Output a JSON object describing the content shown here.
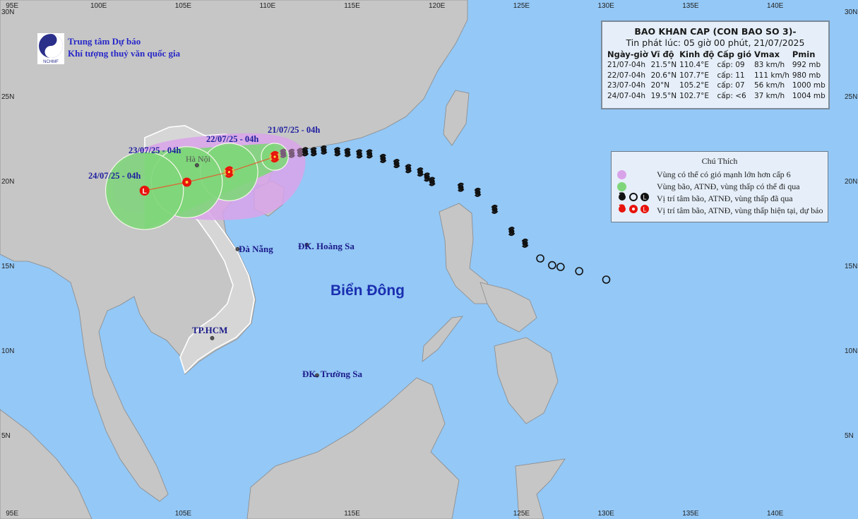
{
  "colors": {
    "ocean": "#94c8f6",
    "land": "#c6c6c6",
    "vietnam": "#d4d4d4",
    "wind_zone": "#d9a3ea",
    "storm_zone": "#7fd67a",
    "forecast": "#e8140c",
    "past": "#111111"
  },
  "header": {
    "org_line1": "Trung tâm Dự báo",
    "org_line2": "Khí tượng thuỷ văn quốc gia",
    "logo_text": "NCHMF"
  },
  "info": {
    "title": "BAO KHAN CAP (CON BAO SO 3)-",
    "issued": "Tin phát lúc: 05 giờ 00 phút, 21/07/2025",
    "columns": [
      "Ngày-giờ",
      "Vĩ độ",
      "Kinh độ",
      "Cấp gió",
      "Vmax",
      "Pmin"
    ],
    "rows": [
      [
        "21/07-04h",
        "21.5°N",
        "110.4°E",
        "cấp: 09",
        "83 km/h",
        "992 mb"
      ],
      [
        "22/07-04h",
        "20.6°N",
        "107.7°E",
        "cấp: 11",
        "111 km/h",
        "980 mb"
      ],
      [
        "23/07-04h",
        "20°N",
        "105.2°E",
        "cấp: 07",
        "56 km/h",
        "1000 mb"
      ],
      [
        "24/07-04h",
        "19.5°N",
        "102.7°E",
        "cấp: <6",
        "37 km/h",
        "1004 mb"
      ]
    ]
  },
  "legend": {
    "title": "Chú Thích",
    "items": [
      {
        "label": "Vùng có thể có gió mạnh lớn hơn cấp 6",
        "icon": "purple-circle"
      },
      {
        "label": "Vùng bão, ATNĐ, vùng thấp có thể đi qua",
        "icon": "green-circle"
      },
      {
        "label": "Vị trí tâm bão, ATNĐ, vùng thấp đã qua",
        "icon": "black-storm-symbols"
      },
      {
        "label": "Vị trí tâm bão, ATNĐ, vùng thấp hiện tại, dự báo",
        "icon": "red-storm-symbols"
      }
    ]
  },
  "forecast_labels": [
    "21/07/25 - 04h",
    "22/07/25 - 04h",
    "23/07/25 - 04h",
    "24/07/25 - 04h"
  ],
  "forecast_points": [
    {
      "lon": 110.4,
      "lat": 21.5,
      "type": "storm",
      "radius_deg": 0.8
    },
    {
      "lon": 107.7,
      "lat": 20.6,
      "type": "storm",
      "radius_deg": 1.7
    },
    {
      "lon": 105.2,
      "lat": 20.0,
      "type": "depression",
      "radius_deg": 2.1
    },
    {
      "lon": 102.7,
      "lat": 19.5,
      "type": "low",
      "radius_deg": 2.3
    }
  ],
  "past_track": [
    {
      "lon": 110.9,
      "lat": 21.7,
      "type": "storm-recent"
    },
    {
      "lon": 111.4,
      "lat": 21.7,
      "type": "storm-recent"
    },
    {
      "lon": 111.9,
      "lat": 21.75,
      "type": "storm-recent"
    },
    {
      "lon": 112.2,
      "lat": 21.8,
      "type": "storm"
    },
    {
      "lon": 112.7,
      "lat": 21.8,
      "type": "storm"
    },
    {
      "lon": 113.3,
      "lat": 21.9,
      "type": "storm"
    },
    {
      "lon": 114.1,
      "lat": 21.8,
      "type": "storm"
    },
    {
      "lon": 114.7,
      "lat": 21.75,
      "type": "storm"
    },
    {
      "lon": 115.4,
      "lat": 21.67,
      "type": "storm"
    },
    {
      "lon": 116.0,
      "lat": 21.67,
      "type": "storm"
    },
    {
      "lon": 116.8,
      "lat": 21.4,
      "type": "storm"
    },
    {
      "lon": 117.6,
      "lat": 21.1,
      "type": "storm"
    },
    {
      "lon": 118.3,
      "lat": 20.8,
      "type": "storm"
    },
    {
      "lon": 119.0,
      "lat": 20.6,
      "type": "storm"
    },
    {
      "lon": 119.4,
      "lat": 20.3,
      "type": "storm"
    },
    {
      "lon": 119.7,
      "lat": 20.04,
      "type": "storm"
    },
    {
      "lon": 121.4,
      "lat": 19.7,
      "type": "storm"
    },
    {
      "lon": 122.4,
      "lat": 19.4,
      "type": "storm"
    },
    {
      "lon": 123.4,
      "lat": 18.4,
      "type": "storm"
    },
    {
      "lon": 124.4,
      "lat": 17.1,
      "type": "storm"
    },
    {
      "lon": 125.2,
      "lat": 16.4,
      "type": "storm"
    },
    {
      "lon": 126.1,
      "lat": 15.5,
      "type": "depression"
    },
    {
      "lon": 126.8,
      "lat": 15.1,
      "type": "depression"
    },
    {
      "lon": 127.3,
      "lat": 15.0,
      "type": "depression"
    },
    {
      "lon": 128.4,
      "lat": 14.75,
      "type": "depression"
    },
    {
      "lon": 130.0,
      "lat": 14.25,
      "type": "depression"
    }
  ],
  "places": [
    {
      "name": "Hà Nội",
      "lon": 105.8,
      "lat": 21.0
    },
    {
      "name": "Đà Nẵng",
      "lon": 108.2,
      "lat": 16.05
    },
    {
      "name": "ĐK. Hoàng Sa",
      "lon": 112.3,
      "lat": 16.3
    },
    {
      "name": "TP.HCM",
      "lon": 106.7,
      "lat": 10.8
    },
    {
      "name": "ĐK. Trường Sa",
      "lon": 112.9,
      "lat": 8.6
    }
  ],
  "sea_label": "Biển Đông",
  "axes": {
    "top_ticks": [
      "95E",
      "100E",
      "105E",
      "110E",
      "115E",
      "120E",
      "125E",
      "130E",
      "135E",
      "140E"
    ],
    "bottom_ticks": [
      "95E",
      "105E",
      "115E",
      "125E",
      "130E",
      "135E",
      "140E"
    ],
    "bottom_tick_lons": [
      95,
      105,
      115,
      125,
      130,
      135,
      140
    ],
    "top_tick_lons": [
      95,
      100,
      105,
      110,
      115,
      120,
      125,
      130,
      135,
      140
    ],
    "left_ticks": [
      "30N",
      "25N",
      "20N",
      "15N",
      "10N",
      "5N"
    ],
    "right_ticks": [
      "30N",
      "25N",
      "20N",
      "15N",
      "10N",
      "5N"
    ],
    "tick_lats": [
      30,
      25,
      20,
      15,
      10,
      5
    ]
  }
}
